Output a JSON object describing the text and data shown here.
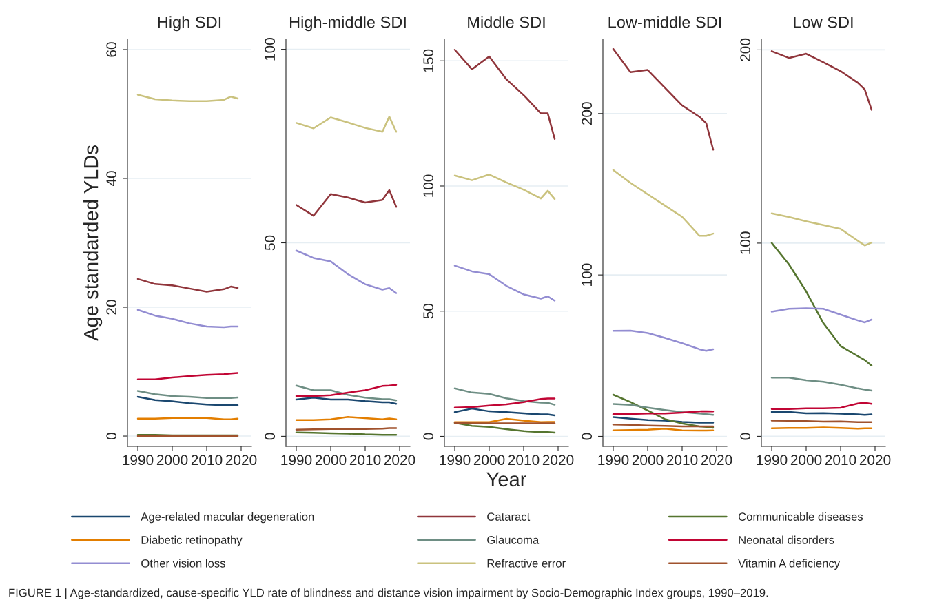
{
  "chart_data": [
    {
      "type": "line",
      "title": "High SDI",
      "ylabel": "Age standarded YLDs",
      "x": [
        1990,
        1995,
        2000,
        2005,
        2010,
        2015,
        2017,
        2019
      ],
      "xlim": [
        1987,
        2023
      ],
      "xticks": [
        1990,
        2000,
        2010,
        2020
      ],
      "ylim": [
        -1.6,
        61.6
      ],
      "yticks": [
        0,
        20,
        40,
        60
      ],
      "grid": "y",
      "legend": "bottom",
      "line_style": "solid",
      "marker": "none",
      "annotations": [
        "FIGURE 1 | Age-standardized, cause-specific YLD rate of blindness and distance vision impairment by Socio-Demographic Index groups, 1990–2019."
      ],
      "series": [
        {
          "name": "Age-related macular degeneration",
          "color": "#1a476f",
          "values": [
            6.1,
            5.6,
            5.4,
            5.1,
            4.9,
            4.8,
            4.8,
            4.8
          ]
        },
        {
          "name": "Cataract",
          "color": "#90353b",
          "values": [
            24.4,
            23.6,
            23.4,
            22.9,
            22.4,
            22.8,
            23.2,
            23.0
          ]
        },
        {
          "name": "Communicable diseases",
          "color": "#55752f",
          "values": [
            0.2,
            0.2,
            0.1,
            0.1,
            0.1,
            0.1,
            0.1,
            0.1
          ]
        },
        {
          "name": "Diabetic retinopathy",
          "color": "#e37e00",
          "values": [
            2.7,
            2.7,
            2.8,
            2.8,
            2.8,
            2.6,
            2.6,
            2.7
          ]
        },
        {
          "name": "Glaucoma",
          "color": "#6e8e84",
          "values": [
            7.0,
            6.5,
            6.2,
            6.1,
            5.9,
            5.9,
            5.9,
            6.0
          ]
        },
        {
          "name": "Neonatal disorders",
          "color": "#c10534",
          "values": [
            8.8,
            8.8,
            9.1,
            9.3,
            9.5,
            9.6,
            9.7,
            9.8
          ]
        },
        {
          "name": "Other vision loss",
          "color": "#938dd2",
          "values": [
            19.6,
            18.7,
            18.2,
            17.5,
            17.0,
            16.9,
            17.0,
            17.0
          ]
        },
        {
          "name": "Refractive error",
          "color": "#cac27e",
          "values": [
            53.0,
            52.3,
            52.1,
            52.0,
            52.0,
            52.2,
            52.7,
            52.4
          ]
        },
        {
          "name": "Vitamin A deficiency",
          "color": "#a0522d",
          "values": [
            0.0,
            0.0,
            0.0,
            0.0,
            0.0,
            0.0,
            0.0,
            0.0
          ]
        }
      ]
    },
    {
      "type": "line",
      "title": "High-middle SDI",
      "x": [
        1990,
        1995,
        2000,
        2005,
        2010,
        2015,
        2017,
        2019
      ],
      "xlim": [
        1987,
        2023
      ],
      "xticks": [
        1990,
        2000,
        2010,
        2020
      ],
      "ylim": [
        -2.6,
        102.6
      ],
      "yticks": [
        0,
        50,
        100
      ],
      "grid": "y",
      "line_style": "solid",
      "marker": "none",
      "series": [
        {
          "color": "#1a476f",
          "values": [
            9.5,
            10.0,
            9.5,
            9.5,
            9.1,
            8.8,
            8.8,
            8.4
          ]
        },
        {
          "color": "#90353b",
          "values": [
            59.8,
            57.0,
            62.6,
            61.7,
            60.4,
            61.1,
            63.6,
            59.3
          ]
        },
        {
          "color": "#55752f",
          "values": [
            1.0,
            0.9,
            0.8,
            0.7,
            0.5,
            0.4,
            0.4,
            0.4
          ]
        },
        {
          "color": "#e37e00",
          "values": [
            4.2,
            4.2,
            4.4,
            5.0,
            4.7,
            4.4,
            4.6,
            4.4
          ]
        },
        {
          "color": "#6e8e84",
          "values": [
            13.1,
            11.9,
            11.9,
            10.7,
            10.0,
            9.6,
            9.6,
            9.3
          ]
        },
        {
          "color": "#c10534",
          "values": [
            10.4,
            10.4,
            10.6,
            11.3,
            11.9,
            13.0,
            13.1,
            13.3
          ]
        },
        {
          "color": "#938dd2",
          "values": [
            48.0,
            46.1,
            45.2,
            41.9,
            39.3,
            37.9,
            38.3,
            37.0
          ]
        },
        {
          "color": "#cac27e",
          "values": [
            81.0,
            79.6,
            82.4,
            81.1,
            79.7,
            78.7,
            82.6,
            78.7
          ]
        },
        {
          "color": "#a0522d",
          "values": [
            1.7,
            1.8,
            1.9,
            1.9,
            1.9,
            2.0,
            2.1,
            2.1
          ]
        }
      ]
    },
    {
      "type": "line",
      "title": "Middle SDI",
      "xlabel": "Year",
      "x": [
        1990,
        1995,
        2000,
        2005,
        2010,
        2015,
        2017,
        2019
      ],
      "xlim": [
        1987,
        2023
      ],
      "xticks": [
        1990,
        2000,
        2010,
        2020
      ],
      "ylim": [
        -4,
        158.6
      ],
      "yticks": [
        0,
        50,
        100,
        150
      ],
      "grid": "y",
      "line_style": "solid",
      "marker": "none",
      "series": [
        {
          "color": "#1a476f",
          "values": [
            9.7,
            11.1,
            10.0,
            9.7,
            9.2,
            8.8,
            8.8,
            8.4
          ]
        },
        {
          "color": "#90353b",
          "values": [
            154.4,
            146.6,
            151.7,
            142.6,
            136.3,
            129.0,
            129.0,
            118.8
          ]
        },
        {
          "color": "#55752f",
          "values": [
            5.4,
            4.2,
            3.8,
            2.9,
            2.1,
            1.7,
            1.7,
            1.5
          ]
        },
        {
          "color": "#e37e00",
          "values": [
            5.7,
            5.7,
            5.7,
            7.0,
            6.3,
            5.7,
            5.8,
            5.8
          ]
        },
        {
          "color": "#6e8e84",
          "values": [
            19.2,
            17.5,
            17.0,
            15.2,
            14.1,
            13.5,
            13.4,
            12.6
          ]
        },
        {
          "color": "#c10534",
          "values": [
            11.5,
            11.7,
            12.3,
            12.8,
            13.7,
            14.9,
            15.1,
            15.1
          ]
        },
        {
          "color": "#938dd2",
          "values": [
            68.2,
            65.9,
            64.8,
            60.1,
            56.7,
            55.0,
            55.9,
            54.2
          ]
        },
        {
          "color": "#cac27e",
          "values": [
            104.2,
            102.3,
            104.6,
            101.4,
            98.5,
            95.0,
            98.1,
            94.8
          ]
        },
        {
          "color": "#a0522d",
          "values": [
            5.4,
            5.2,
            5.2,
            5.2,
            5.2,
            5.2,
            5.2,
            5.2
          ]
        }
      ]
    },
    {
      "type": "line",
      "title": "Low-middle SDI",
      "x": [
        1990,
        1995,
        2000,
        2005,
        2010,
        2015,
        2017,
        2019
      ],
      "xlim": [
        1987,
        2023
      ],
      "xticks": [
        1990,
        2000,
        2010,
        2020
      ],
      "ylim": [
        -6.2,
        246
      ],
      "yticks": [
        0,
        100,
        200
      ],
      "grid": "y",
      "line_style": "solid",
      "marker": "none",
      "series": [
        {
          "color": "#1a476f",
          "values": [
            11.9,
            11.0,
            10.1,
            9.8,
            8.9,
            8.5,
            8.5,
            8.5
          ]
        },
        {
          "color": "#90353b",
          "values": [
            240,
            225.6,
            227,
            216,
            205,
            198,
            194,
            177.6
          ]
        },
        {
          "color": "#55752f",
          "values": [
            25.8,
            21.3,
            16.0,
            10.7,
            8.0,
            6.2,
            5.8,
            5.3
          ]
        },
        {
          "color": "#e37e00",
          "values": [
            3.7,
            3.9,
            4.1,
            4.8,
            3.7,
            3.6,
            3.6,
            3.7
          ]
        },
        {
          "color": "#6e8e84",
          "values": [
            20.0,
            19.5,
            17.8,
            16.3,
            15.0,
            14.2,
            13.7,
            13.3
          ]
        },
        {
          "color": "#c10534",
          "values": [
            13.7,
            13.9,
            14.2,
            14.2,
            14.7,
            15.5,
            15.6,
            15.5
          ]
        },
        {
          "color": "#938dd2",
          "values": [
            65.4,
            65.5,
            64.0,
            61.0,
            57.7,
            54.0,
            53.0,
            54.0
          ]
        },
        {
          "color": "#cac27e",
          "values": [
            165,
            157,
            150,
            143,
            136,
            124.3,
            124.3,
            125.6
          ]
        },
        {
          "color": "#a0522d",
          "values": [
            7.3,
            7.1,
            6.7,
            6.5,
            6.2,
            6.2,
            6.2,
            6.2
          ]
        }
      ]
    },
    {
      "type": "line",
      "title": "Low SDI",
      "x": [
        1990,
        1995,
        2000,
        2005,
        2010,
        2015,
        2017,
        2019
      ],
      "xlim": [
        1987,
        2023
      ],
      "xticks": [
        1990,
        2000,
        2010,
        2020
      ],
      "ylim": [
        -5.2,
        205.5
      ],
      "yticks": [
        0,
        100,
        200
      ],
      "grid": "y",
      "line_style": "solid",
      "marker": "none",
      "series": [
        {
          "color": "#1a476f",
          "values": [
            12.6,
            12.6,
            11.9,
            12.0,
            11.7,
            11.4,
            11.1,
            11.4
          ]
        },
        {
          "color": "#90353b",
          "values": [
            199.3,
            195.8,
            198.0,
            193.6,
            189.0,
            183.0,
            179.5,
            169.0
          ]
        },
        {
          "color": "#55752f",
          "values": [
            100.1,
            89.0,
            75.0,
            58.6,
            46.7,
            41.5,
            39.5,
            36.6
          ]
        },
        {
          "color": "#e37e00",
          "values": [
            4.2,
            4.3,
            4.3,
            4.6,
            4.3,
            4.0,
            4.2,
            4.2
          ]
        },
        {
          "color": "#6e8e84",
          "values": [
            30.4,
            30.4,
            29.0,
            28.2,
            26.7,
            24.8,
            24.2,
            23.7
          ]
        },
        {
          "color": "#c10534",
          "values": [
            14.1,
            14.1,
            14.5,
            14.5,
            14.8,
            17.0,
            17.4,
            16.8
          ]
        },
        {
          "color": "#938dd2",
          "values": [
            64.5,
            66.0,
            66.3,
            66.0,
            63.0,
            60.0,
            59.0,
            60.4
          ]
        },
        {
          "color": "#cac27e",
          "values": [
            115.4,
            113.5,
            111.3,
            109.3,
            107.4,
            101.2,
            98.8,
            100.3
          ]
        },
        {
          "color": "#a0522d",
          "values": [
            8.2,
            8.1,
            7.9,
            7.6,
            7.7,
            7.4,
            7.4,
            7.4
          ]
        }
      ]
    }
  ]
}
